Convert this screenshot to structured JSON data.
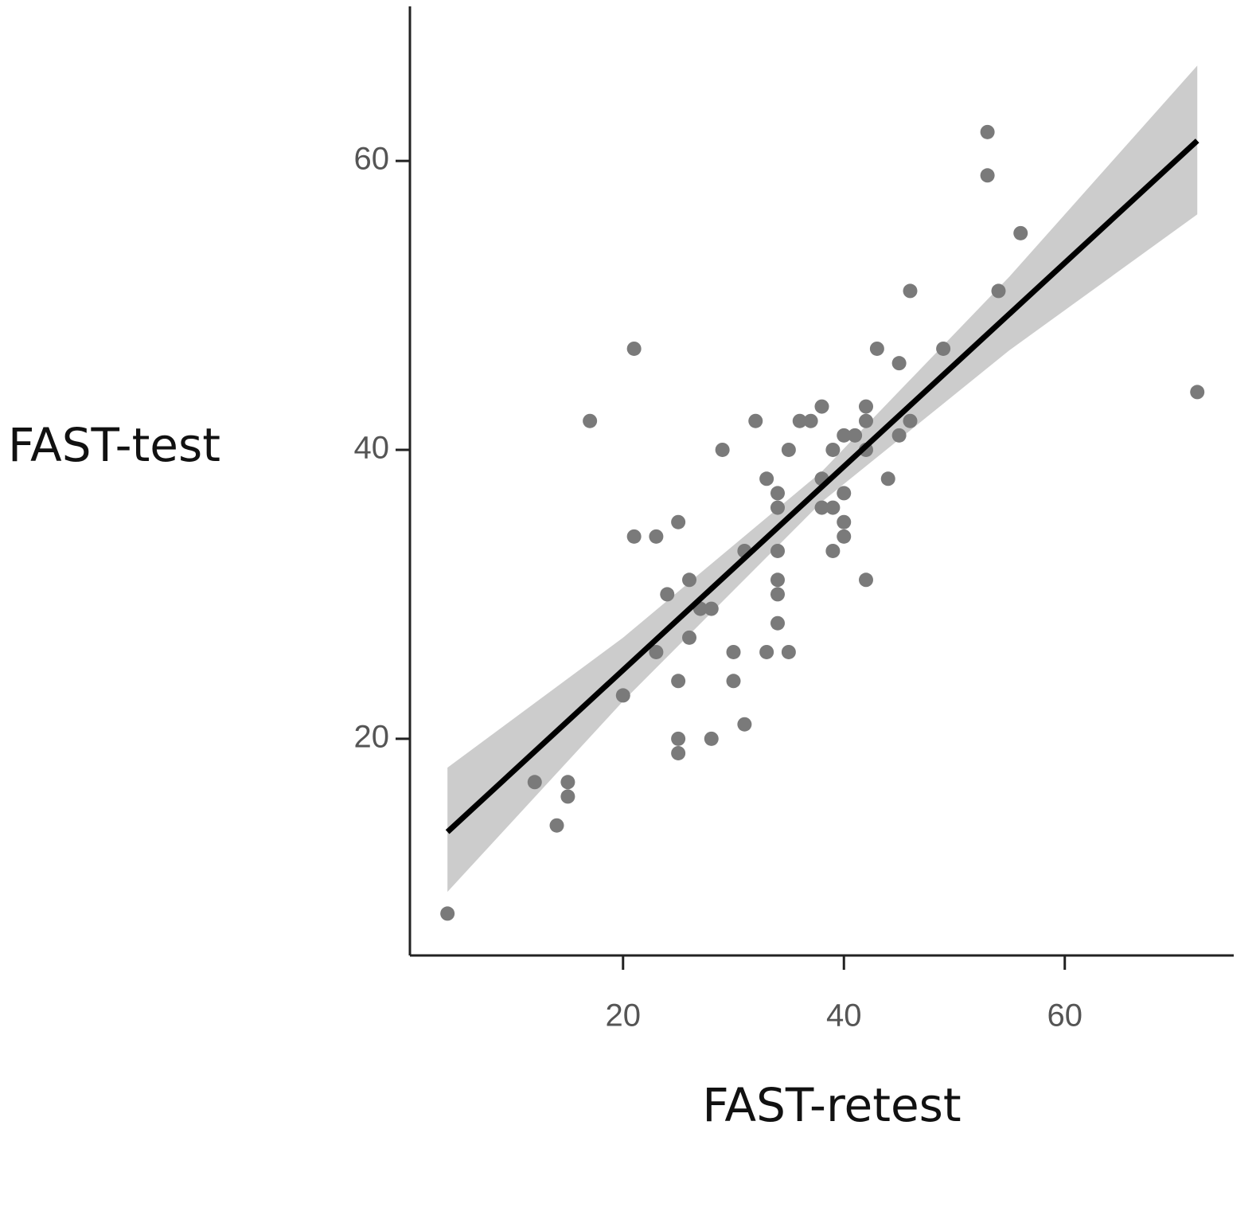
{
  "chart_data": {
    "type": "scatter",
    "x_label": "FAST-retest",
    "y_label": "FAST-test",
    "xlim": [
      0.7,
      75.3
    ],
    "ylim": [
      5,
      70.7
    ],
    "xticks": [
      20,
      40,
      60
    ],
    "yticks": [
      20,
      40,
      60
    ],
    "grid": false,
    "points": {
      "color": "#7a7a7a",
      "x": [
        4.1,
        12,
        15,
        15,
        14,
        17,
        21,
        21,
        23,
        25,
        24,
        26,
        23,
        26,
        27,
        28,
        25,
        20,
        25,
        25,
        28,
        31,
        30,
        30,
        29,
        32,
        31,
        33,
        35,
        34,
        34,
        34,
        34,
        33,
        34,
        34,
        35,
        36,
        37,
        38,
        38,
        38,
        39,
        39,
        39,
        40,
        40,
        40,
        40,
        41,
        42,
        42,
        42,
        42,
        43,
        44,
        45,
        45,
        46,
        46,
        49,
        53,
        53,
        54,
        56,
        72
      ],
      "y": [
        7.9,
        17,
        17,
        16,
        14,
        42,
        47,
        34,
        34,
        35,
        30,
        31,
        26,
        27,
        29,
        29,
        24,
        23,
        20,
        19,
        20,
        21,
        24,
        26,
        40,
        42,
        33,
        26,
        26,
        28,
        30,
        31,
        33,
        38,
        37,
        36,
        40,
        42,
        42,
        43,
        38,
        36,
        36,
        40,
        33,
        41,
        37,
        35,
        34,
        41,
        43,
        42,
        40,
        31,
        47,
        38,
        46,
        41,
        42,
        51,
        47,
        62,
        59,
        51,
        55,
        44
      ]
    },
    "fit_line": {
      "color": "#000000",
      "x": [
        4.1,
        72
      ],
      "y": [
        13.55,
        61.4
      ]
    },
    "confidence_band": {
      "color": "#cccccc",
      "x": [
        4.1,
        20,
        38,
        55,
        72
      ],
      "upper": [
        18.0,
        27.0,
        38.5,
        52.0,
        66.6
      ],
      "lower": [
        9.4,
        22.6,
        36.4,
        46.9,
        56.3
      ]
    }
  }
}
